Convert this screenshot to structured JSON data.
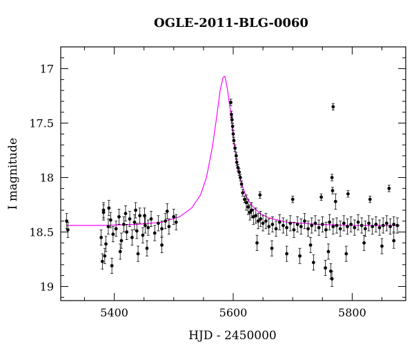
{
  "chart_data": {
    "type": "scatter",
    "title": "OGLE-2011-BLG-0060",
    "xlabel": "HJD - 2450000",
    "ylabel": "I magnitude",
    "xlim": [
      5310,
      5890
    ],
    "ylim": [
      19.13,
      16.8
    ],
    "y_inverted": true,
    "x_ticks": [
      5400,
      5600,
      5800
    ],
    "y_ticks": [
      17,
      17.5,
      18,
      18.5,
      19
    ],
    "grid": false,
    "colors": {
      "points": "#000000",
      "model": "#ff00ff"
    },
    "model": {
      "name": "",
      "baseline": 18.44,
      "peak_x": 5585,
      "peak_y": 17.07,
      "x": [
        5320,
        5380,
        5440,
        5480,
        5510,
        5530,
        5545,
        5555,
        5565,
        5572,
        5578,
        5583,
        5586,
        5590,
        5595,
        5600,
        5605,
        5612,
        5620,
        5630,
        5645,
        5660,
        5690,
        5740,
        5800,
        5880
      ],
      "y": [
        18.44,
        18.44,
        18.43,
        18.41,
        18.36,
        18.28,
        18.16,
        18.0,
        17.72,
        17.45,
        17.2,
        17.08,
        17.07,
        17.18,
        17.38,
        17.62,
        17.84,
        18.02,
        18.15,
        18.25,
        18.33,
        18.37,
        18.41,
        18.43,
        18.44,
        18.44
      ]
    },
    "series": [
      {
        "x": [
          5320,
          5322,
          5378,
          5382,
          5386,
          5390,
          5394,
          5398,
          5403,
          5408,
          5412,
          5416,
          5421,
          5426,
          5430,
          5434,
          5438,
          5443,
          5448,
          5452,
          5457,
          5462,
          5468,
          5474,
          5480,
          5486,
          5492,
          5500,
          5504,
          5380,
          5384,
          5396,
          5410,
          5440,
          5455,
          5480,
          5382,
          5391,
          5419,
          5436,
          5451,
          5489,
          5596,
          5597,
          5598,
          5599,
          5600,
          5601,
          5603,
          5605,
          5606,
          5608,
          5610,
          5612,
          5614,
          5616,
          5619,
          5622,
          5625,
          5628,
          5631,
          5634,
          5638,
          5642,
          5646,
          5650,
          5655,
          5660,
          5666,
          5672,
          5678,
          5684,
          5690,
          5696,
          5702,
          5708,
          5714,
          5720,
          5726,
          5732,
          5738,
          5744,
          5750,
          5756,
          5762,
          5768,
          5774,
          5780,
          5786,
          5792,
          5798,
          5804,
          5810,
          5816,
          5822,
          5828,
          5834,
          5840,
          5846,
          5852,
          5858,
          5864,
          5870,
          5876,
          5640,
          5665,
          5690,
          5712,
          5730,
          5760,
          5790,
          5820,
          5850,
          5870,
          5645,
          5700,
          5748,
          5767,
          5772,
          5793,
          5830,
          5862,
          5735,
          5755,
          5764,
          5766,
          5766,
          5768
        ],
        "y": [
          18.4,
          18.48,
          18.55,
          18.32,
          18.61,
          18.45,
          18.39,
          18.52,
          18.47,
          18.36,
          18.58,
          18.43,
          18.5,
          18.38,
          18.55,
          18.41,
          18.49,
          18.35,
          18.53,
          18.44,
          18.46,
          18.38,
          18.51,
          18.42,
          18.47,
          18.4,
          18.45,
          18.36,
          18.41,
          18.77,
          18.72,
          18.81,
          18.68,
          18.7,
          18.65,
          18.62,
          18.3,
          18.28,
          18.33,
          18.3,
          18.35,
          18.31,
          17.31,
          17.42,
          17.47,
          17.53,
          17.6,
          17.66,
          17.73,
          17.8,
          17.86,
          17.91,
          17.95,
          18.0,
          18.06,
          18.14,
          18.2,
          18.23,
          18.27,
          18.32,
          18.3,
          18.36,
          18.35,
          18.4,
          18.38,
          18.42,
          18.4,
          18.45,
          18.43,
          18.47,
          18.41,
          18.44,
          18.46,
          18.42,
          18.48,
          18.43,
          18.45,
          18.4,
          18.47,
          18.44,
          18.42,
          18.46,
          18.43,
          18.48,
          18.41,
          18.45,
          18.44,
          18.47,
          18.42,
          18.45,
          18.43,
          18.46,
          18.41,
          18.44,
          18.47,
          18.42,
          18.45,
          18.43,
          18.46,
          18.44,
          18.42,
          18.45,
          18.43,
          18.44,
          18.6,
          18.65,
          18.7,
          18.72,
          18.62,
          18.68,
          18.7,
          18.6,
          18.63,
          18.58,
          18.16,
          18.2,
          18.18,
          18.12,
          18.22,
          18.15,
          18.2,
          18.1,
          18.78,
          18.83,
          18.86,
          18.93,
          18.0,
          17.35
        ]
      }
    ]
  }
}
